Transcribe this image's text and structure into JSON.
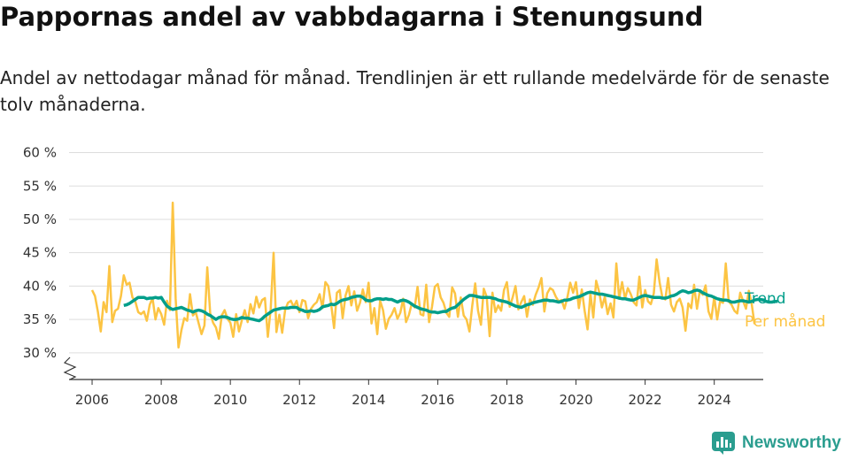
{
  "title": "Pappornas andel av vabbdagarna i Stenungsund",
  "subtitle": "Andel av nettodagar månad för månad. Trendlinjen är ett rullande medelvärde för de senaste tolv månaderna.",
  "brand": {
    "name": "Newsworthy",
    "color": "#2a9d8f",
    "icon": "newsworthy-logo-icon"
  },
  "colors": {
    "trend": "#009e8a",
    "monthly": "#fcc443",
    "grid": "#dddddd",
    "axis": "#333333"
  },
  "chart_data": {
    "type": "line",
    "title": "Pappornas andel av vabbdagarna i Stenungsund",
    "xlabel": "",
    "ylabel": "",
    "y_unit": "%",
    "y_ticks": [
      30,
      35,
      40,
      45,
      50,
      55,
      60
    ],
    "y_tick_labels": [
      "30 %",
      "35 %",
      "40 %",
      "45 %",
      "50 %",
      "55 %",
      "60 %"
    ],
    "x_ticks": [
      2006,
      2008,
      2010,
      2012,
      2014,
      2016,
      2018,
      2020,
      2022,
      2024
    ],
    "xlim": [
      "2005-05",
      "2025-06"
    ],
    "ylim": [
      26,
      61
    ],
    "y_axis_break": true,
    "grid": true,
    "legend": "inline labels at right end of lines",
    "series": [
      {
        "name": "Per månad",
        "color": "#fcc443",
        "x_start": "2006-01",
        "frequency": "monthly",
        "values": [
          39.4,
          38.5,
          36.2,
          33.2,
          37.6,
          36.1,
          43.0,
          34.6,
          36.3,
          36.6,
          38.5,
          41.6,
          40.2,
          40.5,
          38.3,
          37.7,
          36.1,
          35.8,
          36.2,
          34.8,
          37.2,
          38.2,
          35.0,
          36.7,
          35.8,
          34.2,
          37.8,
          36.4,
          52.5,
          38.1,
          30.8,
          33.4,
          35.2,
          34.8,
          38.8,
          35.6,
          36.1,
          34.4,
          32.8,
          34.1,
          42.8,
          35.9,
          34.5,
          33.8,
          32.1,
          35.6,
          36.4,
          35.1,
          34.5,
          32.4,
          35.8,
          33.2,
          34.9,
          36.4,
          34.6,
          37.3,
          35.9,
          38.4,
          36.8,
          37.9,
          38.2,
          32.4,
          36.5,
          45.0,
          33.1,
          35.7,
          33.0,
          36.4,
          37.5,
          37.8,
          36.9,
          37.8,
          36.1,
          37.9,
          37.7,
          35.2,
          36.6,
          37.2,
          37.6,
          38.8,
          36.7,
          40.6,
          40.0,
          37.3,
          33.7,
          39.0,
          39.4,
          35.2,
          38.6,
          40.0,
          37.1,
          39.2,
          36.3,
          37.5,
          39.5,
          37.6,
          40.5,
          34.4,
          36.7,
          32.8,
          37.8,
          36.4,
          33.6,
          35.1,
          35.7,
          36.7,
          35.1,
          36.0,
          38.1,
          34.6,
          35.7,
          37.4,
          36.8,
          39.9,
          35.8,
          35.6,
          40.2,
          34.6,
          36.9,
          39.9,
          40.3,
          38.3,
          37.5,
          36.0,
          35.4,
          39.8,
          38.9,
          35.4,
          38.3,
          35.6,
          35.0,
          33.2,
          37.1,
          40.4,
          36.3,
          34.2,
          39.6,
          38.4,
          32.5,
          39.0,
          36.1,
          37.1,
          36.3,
          39.4,
          40.6,
          36.9,
          38.3,
          40.0,
          36.5,
          37.6,
          38.5,
          35.4,
          38.0,
          37.2,
          38.7,
          39.8,
          41.2,
          36.2,
          38.9,
          39.7,
          39.4,
          38.4,
          37.7,
          37.9,
          36.6,
          38.3,
          40.5,
          39.0,
          40.6,
          36.7,
          39.5,
          36.3,
          33.5,
          38.9,
          35.3,
          40.8,
          39.2,
          36.8,
          38.4,
          35.8,
          37.4,
          35.3,
          43.4,
          38.1,
          40.6,
          38.1,
          39.7,
          38.8,
          37.6,
          37.1,
          41.4,
          36.8,
          39.4,
          37.7,
          37.3,
          38.9,
          44.0,
          40.6,
          38.3,
          38.0,
          41.2,
          37.2,
          36.2,
          37.6,
          38.1,
          36.8,
          33.3,
          37.4,
          36.7,
          40.2,
          36.6,
          39.3,
          38.7,
          40.1,
          36.2,
          35.1,
          38.4,
          35.0,
          37.7,
          37.5,
          43.4,
          37.7,
          37.2,
          36.3,
          35.9,
          39.0,
          37.8,
          36.6,
          39.3,
          37.3,
          34.3
        ]
      },
      {
        "name": "Trend",
        "color": "#009e8a",
        "x_start": "2006-12",
        "frequency": "monthly",
        "values": [
          37.1,
          37.2,
          37.4,
          37.7,
          38.0,
          38.3,
          38.3,
          38.3,
          38.1,
          38.2,
          38.2,
          38.3,
          38.2,
          38.3,
          37.6,
          37.0,
          36.7,
          36.5,
          36.6,
          36.7,
          36.8,
          36.6,
          36.4,
          36.3,
          36.1,
          36.3,
          36.4,
          36.3,
          36.1,
          35.8,
          35.6,
          35.3,
          35.0,
          35.3,
          35.4,
          35.4,
          35.3,
          35.1,
          35.0,
          35.0,
          35.1,
          35.3,
          35.2,
          35.2,
          35.1,
          35.0,
          34.9,
          34.8,
          35.1,
          35.5,
          35.8,
          36.1,
          36.4,
          36.5,
          36.6,
          36.7,
          36.7,
          36.7,
          36.8,
          36.8,
          36.8,
          36.5,
          36.4,
          36.2,
          36.2,
          36.3,
          36.2,
          36.3,
          36.5,
          36.9,
          37.0,
          37.1,
          37.3,
          37.2,
          37.4,
          37.7,
          37.9,
          38.0,
          38.1,
          38.3,
          38.4,
          38.5,
          38.5,
          38.3,
          37.9,
          37.8,
          37.8,
          38.0,
          38.1,
          38.1,
          38.0,
          38.1,
          38.0,
          38.0,
          37.8,
          37.6,
          37.8,
          37.9,
          37.8,
          37.6,
          37.3,
          37.0,
          36.8,
          36.6,
          36.5,
          36.4,
          36.2,
          36.1,
          36.1,
          36.0,
          36.1,
          36.2,
          36.2,
          36.5,
          36.7,
          36.8,
          37.2,
          37.6,
          38.0,
          38.3,
          38.6,
          38.6,
          38.5,
          38.4,
          38.3,
          38.3,
          38.3,
          38.3,
          38.2,
          38.1,
          37.9,
          37.8,
          37.7,
          37.6,
          37.4,
          37.2,
          37.0,
          36.9,
          36.8,
          37.0,
          37.2,
          37.3,
          37.5,
          37.6,
          37.7,
          37.8,
          37.9,
          37.9,
          37.8,
          37.8,
          37.7,
          37.6,
          37.7,
          37.9,
          37.9,
          38.0,
          38.2,
          38.3,
          38.4,
          38.6,
          38.8,
          39.0,
          39.1,
          39.0,
          38.9,
          38.8,
          38.8,
          38.7,
          38.6,
          38.5,
          38.4,
          38.3,
          38.2,
          38.1,
          38.1,
          38.0,
          37.9,
          37.9,
          38.1,
          38.3,
          38.5,
          38.6,
          38.5,
          38.4,
          38.3,
          38.3,
          38.3,
          38.2,
          38.2,
          38.3,
          38.5,
          38.6,
          38.8,
          39.1,
          39.3,
          39.2,
          39.0,
          39.1,
          39.3,
          39.4,
          39.3,
          39.0,
          38.8,
          38.6,
          38.5,
          38.3,
          38.1,
          38.0,
          37.9,
          37.9,
          37.8,
          37.6,
          37.6,
          37.7,
          37.8,
          37.8,
          37.7,
          37.6,
          37.7,
          37.9,
          38.0,
          38.0,
          37.9,
          37.7,
          37.6,
          37.6,
          37.7,
          37.7
        ]
      }
    ]
  }
}
